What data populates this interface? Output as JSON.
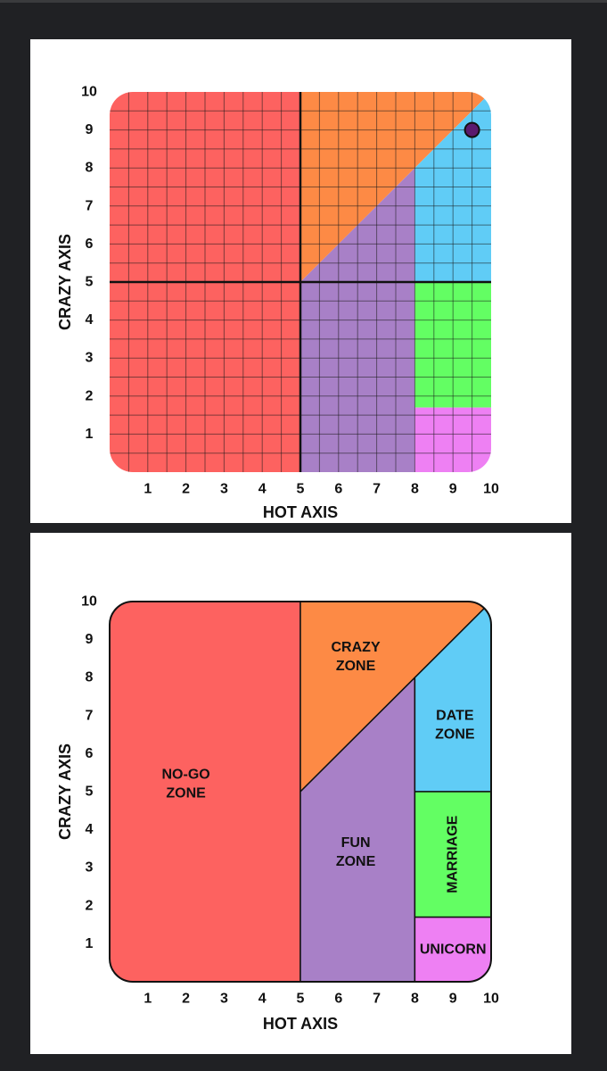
{
  "colors": {
    "page_bg": "#202124",
    "panel_bg": "#ffffff",
    "no_go": "#fd6260",
    "crazy": "#fd8a45",
    "fun": "#a880c7",
    "date": "#60ccf6",
    "marriage": "#63fe63",
    "unicorn": "#ee80f3",
    "dot": "#5b1a6e"
  },
  "chart_data": [
    {
      "type": "scatter",
      "title": "",
      "xlabel": "HOT AXIS",
      "ylabel": "CRAZY AXIS",
      "xlim": [
        0,
        10
      ],
      "ylim": [
        0,
        10
      ],
      "x_ticks": [
        "1",
        "2",
        "3",
        "4",
        "5",
        "6",
        "7",
        "8",
        "9",
        "10"
      ],
      "y_ticks": [
        "1",
        "2",
        "3",
        "4",
        "5",
        "6",
        "7",
        "8",
        "9",
        "10"
      ],
      "grid": true,
      "grid_step": 0.5,
      "legend": "none",
      "reference_lines": [
        {
          "axis": "x",
          "value": 5
        },
        {
          "axis": "y",
          "value": 5
        }
      ],
      "regions": [
        {
          "id": "no_go",
          "color": "#fd6260",
          "points": [
            [
              0,
              0
            ],
            [
              5,
              0
            ],
            [
              5,
              10
            ],
            [
              0,
              10
            ]
          ]
        },
        {
          "id": "crazy",
          "color": "#fd8a45",
          "points": [
            [
              5,
              5
            ],
            [
              5,
              10
            ],
            [
              10,
              10
            ]
          ]
        },
        {
          "id": "fun",
          "color": "#a880c7",
          "points": [
            [
              5,
              0
            ],
            [
              8,
              0
            ],
            [
              8,
              8
            ],
            [
              5,
              5
            ]
          ]
        },
        {
          "id": "date",
          "color": "#60ccf6",
          "points": [
            [
              8,
              5
            ],
            [
              10,
              5
            ],
            [
              10,
              10
            ],
            [
              8,
              8
            ]
          ]
        },
        {
          "id": "marriage",
          "color": "#63fe63",
          "points": [
            [
              8,
              1.7
            ],
            [
              10,
              1.7
            ],
            [
              10,
              5
            ],
            [
              8,
              5
            ]
          ]
        },
        {
          "id": "unicorn",
          "color": "#ee80f3",
          "points": [
            [
              8,
              0
            ],
            [
              10,
              0
            ],
            [
              10,
              1.7
            ],
            [
              8,
              1.7
            ]
          ]
        }
      ],
      "points": [
        {
          "x": 9.5,
          "y": 9.0,
          "color": "#5b1a6e"
        }
      ]
    },
    {
      "type": "area",
      "title": "",
      "xlabel": "HOT AXIS",
      "ylabel": "CRAZY AXIS",
      "xlim": [
        0,
        10
      ],
      "ylim": [
        0,
        10
      ],
      "x_ticks": [
        "1",
        "2",
        "3",
        "4",
        "5",
        "6",
        "7",
        "8",
        "9",
        "10"
      ],
      "y_ticks": [
        "1",
        "2",
        "3",
        "4",
        "5",
        "6",
        "7",
        "8",
        "9",
        "10"
      ],
      "grid": false,
      "legend": "none",
      "regions": [
        {
          "id": "no_go",
          "color": "#fd6260",
          "points": [
            [
              0,
              0
            ],
            [
              5,
              0
            ],
            [
              5,
              10
            ],
            [
              0,
              10
            ]
          ],
          "label_lines": [
            "NO-GO",
            "ZONE"
          ],
          "label_at": [
            2,
            5.2
          ]
        },
        {
          "id": "crazy",
          "color": "#fd8a45",
          "points": [
            [
              5,
              5
            ],
            [
              5,
              10
            ],
            [
              10,
              10
            ]
          ],
          "label_lines": [
            "CRAZY",
            "ZONE"
          ],
          "label_at": [
            6.45,
            8.55
          ]
        },
        {
          "id": "fun",
          "color": "#a880c7",
          "points": [
            [
              5,
              0
            ],
            [
              8,
              0
            ],
            [
              8,
              8
            ],
            [
              5,
              5
            ]
          ],
          "label_lines": [
            "FUN",
            "ZONE"
          ],
          "label_at": [
            6.45,
            3.4
          ]
        },
        {
          "id": "date",
          "color": "#60ccf6",
          "points": [
            [
              8,
              5
            ],
            [
              10,
              5
            ],
            [
              10,
              10
            ],
            [
              8,
              8
            ]
          ],
          "label_lines": [
            "DATE",
            "ZONE"
          ],
          "label_at": [
            9.05,
            6.75
          ]
        },
        {
          "id": "marriage",
          "color": "#63fe63",
          "points": [
            [
              8,
              1.7
            ],
            [
              10,
              1.7
            ],
            [
              10,
              5
            ],
            [
              8,
              5
            ]
          ],
          "label_lines": [
            "MARRIAGE"
          ],
          "label_at": [
            9.0,
            3.35
          ],
          "label_rotate": -90
        },
        {
          "id": "unicorn",
          "color": "#ee80f3",
          "points": [
            [
              8,
              0
            ],
            [
              10,
              0
            ],
            [
              10,
              1.7
            ],
            [
              8,
              1.7
            ]
          ],
          "label_lines": [
            "UNICORN"
          ],
          "label_at": [
            9.0,
            0.85
          ]
        }
      ]
    }
  ]
}
